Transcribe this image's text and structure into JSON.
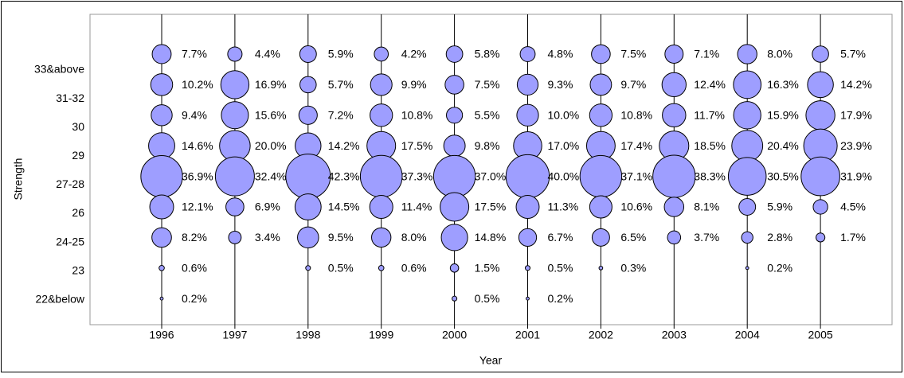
{
  "chart_data": {
    "type": "bubble",
    "x_label": "Year",
    "y_label": "Strength",
    "categories": [
      "33&above",
      "31-32",
      "30",
      "29",
      "27-28",
      "26",
      "24-25",
      "23",
      "22&below"
    ],
    "color": "#9e9eff",
    "series": [
      {
        "name": "1996",
        "values": [
          7.7,
          10.2,
          9.4,
          14.6,
          36.9,
          12.1,
          8.2,
          0.6,
          0.2
        ],
        "value_labels": [
          "7.7%",
          "10.2%",
          "9.4%",
          "14.6%",
          "36.9%",
          "12.1%",
          "8.2%",
          "0.6%",
          "0.2%"
        ]
      },
      {
        "name": "1997",
        "values": [
          4.4,
          16.9,
          15.6,
          20.0,
          32.4,
          6.9,
          3.4,
          null,
          null
        ],
        "value_labels": [
          "4.4%",
          "16.9%",
          "15.6%",
          "20.0%",
          "32.4%",
          "6.9%",
          "3.4%",
          null,
          null
        ]
      },
      {
        "name": "1998",
        "values": [
          5.9,
          5.7,
          7.2,
          14.2,
          42.3,
          14.5,
          9.5,
          0.5,
          null
        ],
        "value_labels": [
          "5.9%",
          "5.7%",
          "7.2%",
          "14.2%",
          "42.3%",
          "14.5%",
          "9.5%",
          "0.5%",
          null
        ]
      },
      {
        "name": "1999",
        "values": [
          4.2,
          9.9,
          10.8,
          17.5,
          37.3,
          11.4,
          8.0,
          0.6,
          null
        ],
        "value_labels": [
          "4.2%",
          "9.9%",
          "10.8%",
          "17.5%",
          "37.3%",
          "11.4%",
          "8.0%",
          "0.6%",
          null
        ]
      },
      {
        "name": "2000",
        "values": [
          5.8,
          7.5,
          5.5,
          9.8,
          37.0,
          17.5,
          14.8,
          1.5,
          0.5
        ],
        "value_labels": [
          "5.8%",
          "7.5%",
          "5.5%",
          "9.8%",
          "37.0%",
          "17.5%",
          "14.8%",
          "1.5%",
          "0.5%"
        ]
      },
      {
        "name": "2001",
        "values": [
          4.8,
          9.3,
          10.0,
          17.0,
          40.0,
          11.3,
          6.7,
          0.5,
          0.2
        ],
        "value_labels": [
          "4.8%",
          "9.3%",
          "10.0%",
          "17.0%",
          "40.0%",
          "11.3%",
          "6.7%",
          "0.5%",
          "0.2%"
        ]
      },
      {
        "name": "2002",
        "values": [
          7.5,
          9.7,
          10.8,
          17.4,
          37.1,
          10.6,
          6.5,
          0.3,
          null
        ],
        "value_labels": [
          "7.5%",
          "9.7%",
          "10.8%",
          "17.4%",
          "37.1%",
          "10.6%",
          "6.5%",
          "0.3%",
          null
        ]
      },
      {
        "name": "2003",
        "values": [
          7.1,
          12.4,
          11.7,
          18.5,
          38.3,
          8.1,
          3.7,
          null,
          null
        ],
        "value_labels": [
          "7.1%",
          "12.4%",
          "11.7%",
          "18.5%",
          "38.3%",
          "8.1%",
          "3.7%",
          null,
          null
        ]
      },
      {
        "name": "2004",
        "values": [
          8.0,
          16.3,
          15.9,
          20.4,
          30.5,
          5.9,
          2.8,
          0.2,
          null
        ],
        "value_labels": [
          "8.0%",
          "16.3%",
          "15.9%",
          "20.4%",
          "30.5%",
          "5.9%",
          "2.8%",
          "0.2%",
          null
        ]
      },
      {
        "name": "2005",
        "values": [
          5.7,
          14.2,
          17.9,
          23.9,
          31.9,
          4.5,
          1.7,
          null,
          null
        ],
        "value_labels": [
          "5.7%",
          "14.2%",
          "17.9%",
          "23.9%",
          "31.9%",
          "4.5%",
          "1.7%",
          null,
          null
        ]
      }
    ]
  }
}
